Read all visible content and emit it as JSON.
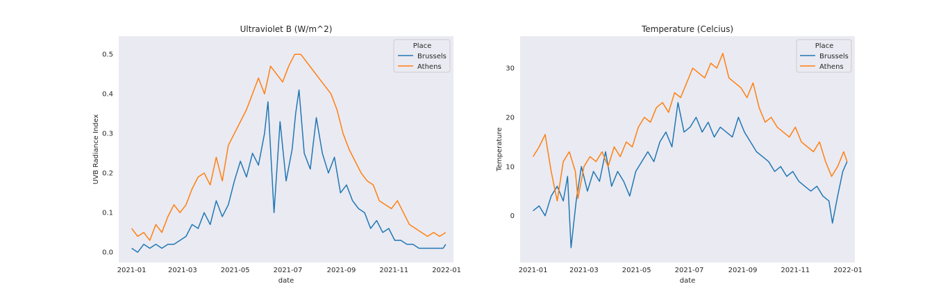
{
  "chart_data": [
    {
      "type": "line",
      "title": "Ultraviolet B (W/m^2)",
      "xlabel": "date",
      "ylabel": "UVB Radiance Index",
      "xlim": [
        "2020-12-17",
        "2022-01-09"
      ],
      "ylim": [
        -0.026,
        0.546
      ],
      "x_ticks": [
        "2021-01",
        "2021-03",
        "2021-05",
        "2021-07",
        "2021-09",
        "2021-11",
        "2022-01"
      ],
      "y_ticks": [
        0.0,
        0.1,
        0.2,
        0.3,
        0.4,
        0.5
      ],
      "y_tick_labels": [
        "0.0",
        "0.1",
        "0.2",
        "0.3",
        "0.4",
        "0.5"
      ],
      "grid": false,
      "legend": {
        "title": "Place",
        "placement": "top-right"
      },
      "series": [
        {
          "name": "Brussels",
          "color": "#1f77b4",
          "points": [
            [
              "2021-01-01",
              0.01
            ],
            [
              "2021-01-08",
              0.0
            ],
            [
              "2021-01-15",
              0.02
            ],
            [
              "2021-01-22",
              0.01
            ],
            [
              "2021-01-29",
              0.02
            ],
            [
              "2021-02-05",
              0.01
            ],
            [
              "2021-02-12",
              0.02
            ],
            [
              "2021-02-19",
              0.02
            ],
            [
              "2021-02-26",
              0.03
            ],
            [
              "2021-03-05",
              0.04
            ],
            [
              "2021-03-12",
              0.07
            ],
            [
              "2021-03-19",
              0.06
            ],
            [
              "2021-03-26",
              0.1
            ],
            [
              "2021-04-02",
              0.07
            ],
            [
              "2021-04-09",
              0.13
            ],
            [
              "2021-04-16",
              0.09
            ],
            [
              "2021-04-23",
              0.12
            ],
            [
              "2021-04-30",
              0.18
            ],
            [
              "2021-05-07",
              0.23
            ],
            [
              "2021-05-14",
              0.19
            ],
            [
              "2021-05-21",
              0.25
            ],
            [
              "2021-05-28",
              0.22
            ],
            [
              "2021-06-04",
              0.3
            ],
            [
              "2021-06-08",
              0.38
            ],
            [
              "2021-06-15",
              0.1
            ],
            [
              "2021-06-22",
              0.33
            ],
            [
              "2021-06-29",
              0.18
            ],
            [
              "2021-07-06",
              0.26
            ],
            [
              "2021-07-10",
              0.35
            ],
            [
              "2021-07-14",
              0.41
            ],
            [
              "2021-07-20",
              0.25
            ],
            [
              "2021-07-27",
              0.21
            ],
            [
              "2021-08-03",
              0.34
            ],
            [
              "2021-08-10",
              0.25
            ],
            [
              "2021-08-17",
              0.2
            ],
            [
              "2021-08-24",
              0.24
            ],
            [
              "2021-08-31",
              0.15
            ],
            [
              "2021-09-07",
              0.17
            ],
            [
              "2021-09-14",
              0.13
            ],
            [
              "2021-09-21",
              0.11
            ],
            [
              "2021-09-28",
              0.1
            ],
            [
              "2021-10-05",
              0.06
            ],
            [
              "2021-10-12",
              0.08
            ],
            [
              "2021-10-19",
              0.05
            ],
            [
              "2021-10-26",
              0.06
            ],
            [
              "2021-11-02",
              0.03
            ],
            [
              "2021-11-09",
              0.03
            ],
            [
              "2021-11-16",
              0.02
            ],
            [
              "2021-11-23",
              0.02
            ],
            [
              "2021-11-30",
              0.01
            ],
            [
              "2021-12-07",
              0.01
            ],
            [
              "2021-12-14",
              0.01
            ],
            [
              "2021-12-21",
              0.01
            ],
            [
              "2021-12-28",
              0.01
            ],
            [
              "2021-12-31",
              0.02
            ]
          ]
        },
        {
          "name": "Athens",
          "color": "#ff7f0e",
          "points": [
            [
              "2021-01-01",
              0.06
            ],
            [
              "2021-01-08",
              0.04
            ],
            [
              "2021-01-15",
              0.05
            ],
            [
              "2021-01-22",
              0.03
            ],
            [
              "2021-01-29",
              0.07
            ],
            [
              "2021-02-05",
              0.05
            ],
            [
              "2021-02-12",
              0.09
            ],
            [
              "2021-02-19",
              0.12
            ],
            [
              "2021-02-26",
              0.1
            ],
            [
              "2021-03-05",
              0.12
            ],
            [
              "2021-03-12",
              0.16
            ],
            [
              "2021-03-19",
              0.19
            ],
            [
              "2021-03-26",
              0.2
            ],
            [
              "2021-04-02",
              0.17
            ],
            [
              "2021-04-09",
              0.24
            ],
            [
              "2021-04-16",
              0.18
            ],
            [
              "2021-04-23",
              0.27
            ],
            [
              "2021-04-30",
              0.3
            ],
            [
              "2021-05-07",
              0.33
            ],
            [
              "2021-05-14",
              0.36
            ],
            [
              "2021-05-21",
              0.4
            ],
            [
              "2021-05-28",
              0.44
            ],
            [
              "2021-06-04",
              0.4
            ],
            [
              "2021-06-11",
              0.47
            ],
            [
              "2021-06-18",
              0.45
            ],
            [
              "2021-06-25",
              0.43
            ],
            [
              "2021-07-02",
              0.47
            ],
            [
              "2021-07-09",
              0.5
            ],
            [
              "2021-07-16",
              0.5
            ],
            [
              "2021-07-23",
              0.48
            ],
            [
              "2021-07-30",
              0.46
            ],
            [
              "2021-08-06",
              0.44
            ],
            [
              "2021-08-13",
              0.42
            ],
            [
              "2021-08-20",
              0.4
            ],
            [
              "2021-08-27",
              0.36
            ],
            [
              "2021-09-03",
              0.3
            ],
            [
              "2021-09-10",
              0.26
            ],
            [
              "2021-09-17",
              0.23
            ],
            [
              "2021-09-24",
              0.2
            ],
            [
              "2021-10-01",
              0.18
            ],
            [
              "2021-10-08",
              0.17
            ],
            [
              "2021-10-15",
              0.13
            ],
            [
              "2021-10-22",
              0.12
            ],
            [
              "2021-10-29",
              0.11
            ],
            [
              "2021-11-05",
              0.13
            ],
            [
              "2021-11-12",
              0.1
            ],
            [
              "2021-11-19",
              0.07
            ],
            [
              "2021-11-26",
              0.06
            ],
            [
              "2021-12-03",
              0.05
            ],
            [
              "2021-12-10",
              0.04
            ],
            [
              "2021-12-17",
              0.05
            ],
            [
              "2021-12-24",
              0.04
            ],
            [
              "2021-12-31",
              0.05
            ]
          ]
        }
      ]
    },
    {
      "type": "line",
      "title": "Temperature (Celcius)",
      "xlabel": "date",
      "ylabel": "Temperature",
      "xlim": [
        "2020-12-17",
        "2022-01-09"
      ],
      "ylim": [
        -9.5,
        36.5
      ],
      "x_ticks": [
        "2021-01",
        "2021-03",
        "2021-05",
        "2021-07",
        "2021-09",
        "2021-11",
        "2022-01"
      ],
      "y_ticks": [
        0,
        10,
        20,
        30
      ],
      "y_tick_labels": [
        "0",
        "10",
        "20",
        "30"
      ],
      "grid": false,
      "legend": {
        "title": "Place",
        "placement": "top-right"
      },
      "series": [
        {
          "name": "Brussels",
          "color": "#1f77b4",
          "points": [
            [
              "2021-01-01",
              1.0
            ],
            [
              "2021-01-08",
              2.0
            ],
            [
              "2021-01-15",
              0.0
            ],
            [
              "2021-01-22",
              4.0
            ],
            [
              "2021-01-29",
              6.0
            ],
            [
              "2021-02-05",
              3.0
            ],
            [
              "2021-02-10",
              8.0
            ],
            [
              "2021-02-14",
              -6.5
            ],
            [
              "2021-02-20",
              3.0
            ],
            [
              "2021-02-26",
              10.0
            ],
            [
              "2021-03-05",
              5.0
            ],
            [
              "2021-03-12",
              9.0
            ],
            [
              "2021-03-19",
              7.0
            ],
            [
              "2021-03-26",
              13.0
            ],
            [
              "2021-04-02",
              6.0
            ],
            [
              "2021-04-09",
              9.0
            ],
            [
              "2021-04-16",
              7.0
            ],
            [
              "2021-04-23",
              4.0
            ],
            [
              "2021-04-30",
              9.0
            ],
            [
              "2021-05-07",
              11.0
            ],
            [
              "2021-05-14",
              13.0
            ],
            [
              "2021-05-21",
              11.0
            ],
            [
              "2021-05-28",
              15.0
            ],
            [
              "2021-06-04",
              17.0
            ],
            [
              "2021-06-11",
              14.0
            ],
            [
              "2021-06-18",
              23.0
            ],
            [
              "2021-06-25",
              17.0
            ],
            [
              "2021-07-02",
              18.0
            ],
            [
              "2021-07-09",
              20.0
            ],
            [
              "2021-07-16",
              17.0
            ],
            [
              "2021-07-23",
              19.0
            ],
            [
              "2021-07-30",
              16.0
            ],
            [
              "2021-08-06",
              18.0
            ],
            [
              "2021-08-13",
              17.0
            ],
            [
              "2021-08-20",
              16.0
            ],
            [
              "2021-08-27",
              20.0
            ],
            [
              "2021-09-03",
              17.0
            ],
            [
              "2021-09-10",
              15.0
            ],
            [
              "2021-09-17",
              13.0
            ],
            [
              "2021-09-24",
              12.0
            ],
            [
              "2021-10-01",
              11.0
            ],
            [
              "2021-10-08",
              9.0
            ],
            [
              "2021-10-15",
              10.0
            ],
            [
              "2021-10-22",
              8.0
            ],
            [
              "2021-10-29",
              9.0
            ],
            [
              "2021-11-05",
              7.0
            ],
            [
              "2021-11-12",
              6.0
            ],
            [
              "2021-11-19",
              5.0
            ],
            [
              "2021-11-26",
              6.0
            ],
            [
              "2021-12-03",
              4.0
            ],
            [
              "2021-12-10",
              3.0
            ],
            [
              "2021-12-14",
              -1.5
            ],
            [
              "2021-12-20",
              4.0
            ],
            [
              "2021-12-26",
              9.0
            ],
            [
              "2021-12-31",
              11.0
            ]
          ]
        },
        {
          "name": "Athens",
          "color": "#ff7f0e",
          "points": [
            [
              "2021-01-01",
              12.0
            ],
            [
              "2021-01-08",
              14.0
            ],
            [
              "2021-01-15",
              16.5
            ],
            [
              "2021-01-22",
              9.0
            ],
            [
              "2021-01-29",
              3.0
            ],
            [
              "2021-02-05",
              11.0
            ],
            [
              "2021-02-12",
              13.0
            ],
            [
              "2021-02-19",
              9.0
            ],
            [
              "2021-02-22",
              3.5
            ],
            [
              "2021-03-01",
              10.0
            ],
            [
              "2021-03-08",
              12.0
            ],
            [
              "2021-03-15",
              11.0
            ],
            [
              "2021-03-22",
              13.0
            ],
            [
              "2021-03-29",
              10.0
            ],
            [
              "2021-04-05",
              14.0
            ],
            [
              "2021-04-12",
              12.0
            ],
            [
              "2021-04-19",
              15.0
            ],
            [
              "2021-04-26",
              14.0
            ],
            [
              "2021-05-03",
              18.0
            ],
            [
              "2021-05-10",
              20.0
            ],
            [
              "2021-05-17",
              19.0
            ],
            [
              "2021-05-24",
              22.0
            ],
            [
              "2021-05-31",
              23.0
            ],
            [
              "2021-06-07",
              21.0
            ],
            [
              "2021-06-14",
              25.0
            ],
            [
              "2021-06-21",
              24.0
            ],
            [
              "2021-06-28",
              27.0
            ],
            [
              "2021-07-05",
              30.0
            ],
            [
              "2021-07-12",
              29.0
            ],
            [
              "2021-07-19",
              28.0
            ],
            [
              "2021-07-26",
              31.0
            ],
            [
              "2021-08-02",
              30.0
            ],
            [
              "2021-08-09",
              33.0
            ],
            [
              "2021-08-16",
              28.0
            ],
            [
              "2021-08-23",
              27.0
            ],
            [
              "2021-08-30",
              26.0
            ],
            [
              "2021-09-06",
              24.0
            ],
            [
              "2021-09-13",
              27.0
            ],
            [
              "2021-09-20",
              22.0
            ],
            [
              "2021-09-27",
              19.0
            ],
            [
              "2021-10-04",
              20.0
            ],
            [
              "2021-10-11",
              18.0
            ],
            [
              "2021-10-18",
              17.0
            ],
            [
              "2021-10-25",
              16.0
            ],
            [
              "2021-11-01",
              18.0
            ],
            [
              "2021-11-08",
              15.0
            ],
            [
              "2021-11-15",
              14.0
            ],
            [
              "2021-11-22",
              13.0
            ],
            [
              "2021-11-29",
              15.0
            ],
            [
              "2021-12-06",
              11.0
            ],
            [
              "2021-12-13",
              8.0
            ],
            [
              "2021-12-20",
              10.0
            ],
            [
              "2021-12-27",
              13.0
            ],
            [
              "2021-12-31",
              11.0
            ]
          ]
        }
      ]
    }
  ]
}
